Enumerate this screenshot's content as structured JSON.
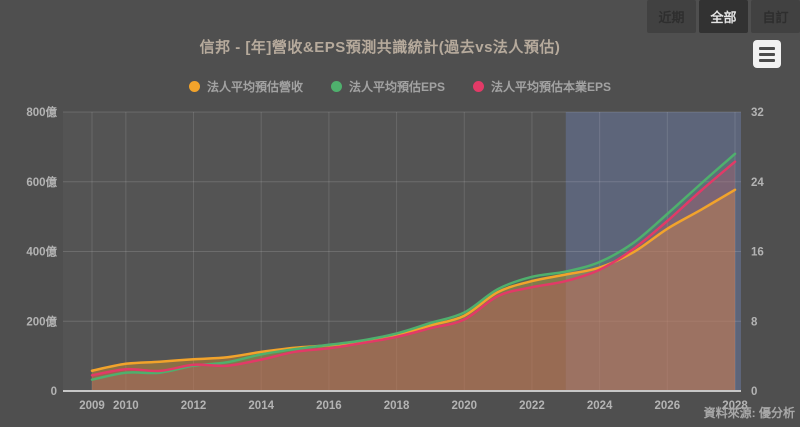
{
  "header": {
    "range_buttons": [
      {
        "label": "近期",
        "active": false
      },
      {
        "label": "全部",
        "active": true
      },
      {
        "label": "自訂",
        "active": false
      }
    ],
    "menu_icon": "hamburger-menu-icon"
  },
  "chart": {
    "title": "信邦 - [年]營收&EPS預測共識統計(過去vs法人預估)",
    "legend": [
      {
        "label": "法人平均預估營收",
        "color": "#f2a32b"
      },
      {
        "label": "法人平均預估EPS",
        "color": "#4fb06d"
      },
      {
        "label": "法人平均預估本業EPS",
        "color": "#e23a67"
      }
    ]
  },
  "chart_data": {
    "type": "area",
    "title": "信邦 - [年]營收&EPS預測共識統計(過去vs法人預估)",
    "x": [
      2009,
      2010,
      2011,
      2012,
      2013,
      2014,
      2015,
      2016,
      2017,
      2018,
      2019,
      2020,
      2021,
      2022,
      2023,
      2024,
      2025,
      2026,
      2027,
      2028
    ],
    "x_tick_labels": [
      "2009",
      "2010",
      "2012",
      "2014",
      "2016",
      "2018",
      "2020",
      "2022",
      "2024",
      "2026",
      "2028"
    ],
    "series": [
      {
        "name": "法人平均預估營收",
        "axis": "left",
        "color": "#f2a32b",
        "fill_opacity": 0.35,
        "values": [
          58,
          78,
          84,
          91,
          97,
          112,
          124,
          131,
          142,
          160,
          188,
          216,
          284,
          315,
          334,
          354,
          398,
          465,
          520,
          577
        ]
      },
      {
        "name": "法人平均預估EPS",
        "axis": "right",
        "color": "#4fb06d",
        "fill_opacity": 0.18,
        "values": [
          1.3,
          2.1,
          2.1,
          2.9,
          3.3,
          4.2,
          4.8,
          5.3,
          5.8,
          6.6,
          7.8,
          9.0,
          11.7,
          13.1,
          13.7,
          14.8,
          17.0,
          20.3,
          23.8,
          27.2
        ]
      },
      {
        "name": "法人平均預估本業EPS",
        "axis": "right",
        "color": "#e23a67",
        "fill_opacity": 0.25,
        "values": [
          1.8,
          2.5,
          2.3,
          3.0,
          2.9,
          3.6,
          4.5,
          4.9,
          5.5,
          6.2,
          7.2,
          8.2,
          10.9,
          11.9,
          12.6,
          13.9,
          16.3,
          19.5,
          23.0,
          26.3
        ]
      }
    ],
    "left_axis": {
      "ticks": [
        "0",
        "200億",
        "400億",
        "600億",
        "800億"
      ],
      "tick_values": [
        0,
        200,
        400,
        600,
        800
      ],
      "ylim": [
        0,
        800
      ]
    },
    "right_axis": {
      "ticks": [
        "0",
        "8",
        "16",
        "24",
        "32"
      ],
      "tick_values": [
        0,
        8,
        16,
        24,
        32
      ],
      "ylim": [
        0,
        32
      ]
    },
    "forecast_band": {
      "from_year": 2023,
      "color": "rgba(108,128,185,0.38)"
    },
    "grid": true,
    "legend_position": "top"
  },
  "footer": {
    "source": "資料來源: 優分析"
  }
}
